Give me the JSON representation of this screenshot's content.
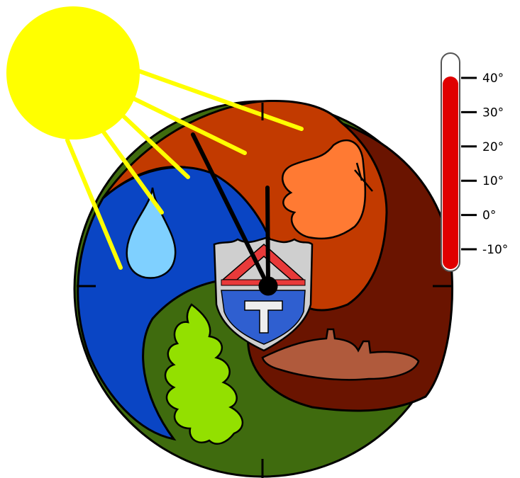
{
  "thermometer": {
    "level_celsius": 40,
    "fill_color": "#e00000",
    "scale": [
      {
        "value": 40,
        "label": "40°"
      },
      {
        "value": 30,
        "label": "30°"
      },
      {
        "value": 20,
        "label": "20°"
      },
      {
        "value": 10,
        "label": "10°"
      },
      {
        "value": 0,
        "label": "0°"
      },
      {
        "value": -10,
        "label": "-10°"
      }
    ]
  },
  "colors": {
    "sun": "#ffff00",
    "water_segment": "#0a45c4",
    "drop": "#7fd0ff",
    "butterfly_segment": "#c23a00",
    "butterfly": "#ff7a33",
    "autumn_segment": "#6a1400",
    "hill": "#b05a3c",
    "forest_segment": "#3f6b0e",
    "leaf": "#93e000",
    "shield_red": "#e83a3a",
    "shield_blue": "#2f5fd0"
  },
  "icons": [
    "sun-icon",
    "water-drop-icon",
    "butterfly-icon",
    "oak-leaf-icon",
    "hill-icon",
    "coat-of-arms-icon",
    "clock-hands-icon",
    "thermometer-icon"
  ]
}
